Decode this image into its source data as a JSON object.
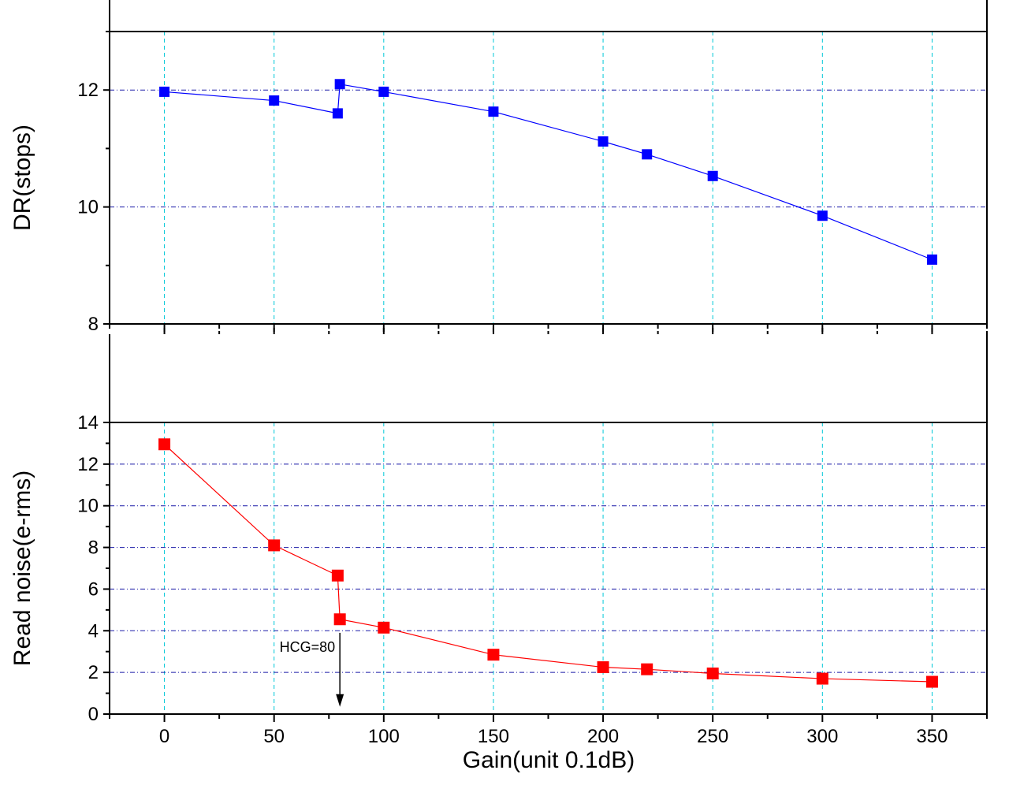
{
  "chart_data": [
    {
      "type": "line",
      "panel": "top",
      "ylabel": "DR(stops)",
      "xlabel": "",
      "ylim": [
        8,
        13
      ],
      "xlim": [
        -25,
        375
      ],
      "yticks": [
        8,
        10,
        12
      ],
      "ytick_labels": [
        "8",
        "10",
        "12"
      ],
      "xticks": [
        0,
        50,
        100,
        150,
        200,
        250,
        300,
        350
      ],
      "grid": true,
      "legend": "none",
      "series": [
        {
          "color": "#0000ff",
          "marker": "square",
          "x": [
            0,
            50,
            79,
            80,
            100,
            150,
            200,
            220,
            250,
            300,
            350
          ],
          "y": [
            11.97,
            11.82,
            11.6,
            12.1,
            11.97,
            11.63,
            11.12,
            10.9,
            10.53,
            9.85,
            9.1
          ]
        }
      ]
    },
    {
      "type": "line",
      "panel": "bottom",
      "ylabel": "Read noise(e-rms)",
      "xlabel": "Gain(unit 0.1dB)",
      "ylim": [
        0,
        14
      ],
      "xlim": [
        -25,
        375
      ],
      "yticks": [
        0,
        2,
        4,
        6,
        8,
        10,
        12,
        14
      ],
      "ytick_labels": [
        "0",
        "2",
        "4",
        "6",
        "8",
        "10",
        "12",
        "14"
      ],
      "xticks": [
        0,
        50,
        100,
        150,
        200,
        250,
        300,
        350
      ],
      "xtick_labels": [
        "0",
        "50",
        "100",
        "150",
        "200",
        "250",
        "300",
        "350"
      ],
      "grid": true,
      "legend": "none",
      "annotation": {
        "text": "HCG=80",
        "x": 80,
        "y_from": 3.9,
        "y_to": 0.35
      },
      "series": [
        {
          "color": "#ff0000",
          "marker": "square",
          "x": [
            0,
            50,
            79,
            80,
            100,
            150,
            200,
            220,
            250,
            300,
            350
          ],
          "y": [
            12.95,
            8.1,
            6.65,
            4.55,
            4.15,
            2.85,
            2.25,
            2.15,
            1.95,
            1.7,
            1.55
          ]
        }
      ]
    }
  ],
  "colors": {
    "grid_vertical": "#00c8d8",
    "grid_horizontal": "#1a1aa8",
    "axis": "#000000",
    "top_series": "#0000ff",
    "bottom_series": "#ff0000"
  }
}
